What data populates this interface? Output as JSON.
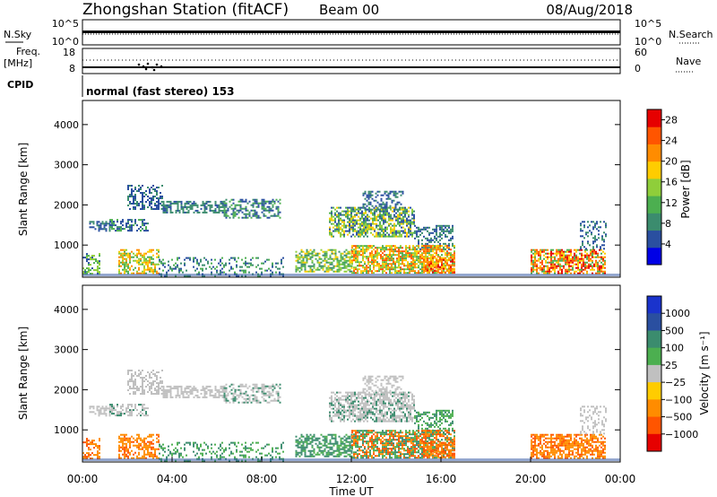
{
  "header": {
    "station": "Zhongshan Station (fitACF)",
    "beam": "Beam 00",
    "date": "08/Aug/2018"
  },
  "panels": {
    "nsky_label": "N.Sky",
    "nsky_ticks": [
      "10^5",
      "10^0"
    ],
    "nsearch_label": "N.Search",
    "nsearch_ticks": [
      "10^5",
      "10^0"
    ],
    "freq_label_1": "Freq.",
    "freq_label_2": "[MHz]",
    "freq_ticks": [
      "18",
      "8"
    ],
    "nave_label": "Nave",
    "nave_ticks": [
      "60",
      "0"
    ],
    "cpid_label": "CPID",
    "cpid_text": "normal (fast stereo) 153"
  },
  "colors": {
    "power": [
      "#0000e6",
      "#2a4fa0",
      "#3b8c6e",
      "#4caf50",
      "#8fce3a",
      "#ffcc00",
      "#ff8c00",
      "#ff5500",
      "#e60000"
    ],
    "velocity": [
      "#1a33cc",
      "#2a4fa0",
      "#3b8c6e",
      "#4caf50",
      "#c0c0c0",
      "#ffcc00",
      "#ff8c00",
      "#ff5500",
      "#e60000"
    ]
  },
  "chart_data": [
    {
      "type": "heatmap",
      "name": "power",
      "xlabel": "Time UT",
      "ylabel": "Slant Range [km]",
      "xlim": [
        0,
        24
      ],
      "ylim": [
        200,
        4600
      ],
      "yticks": [
        1000,
        2000,
        3000,
        4000
      ],
      "colorbar": {
        "label": "Power [dB]",
        "ticks": [
          4,
          8,
          12,
          16,
          20,
          24,
          28
        ],
        "range": [
          0,
          30
        ]
      },
      "grid": false
    },
    {
      "type": "heatmap",
      "name": "velocity",
      "xlabel": "Time UT",
      "ylabel": "Slant Range [km]",
      "xlim": [
        0,
        24
      ],
      "ylim": [
        200,
        4600
      ],
      "yticks": [
        1000,
        2000,
        3000,
        4000
      ],
      "xticks": [
        "00:00",
        "04:00",
        "08:00",
        "12:00",
        "16:00",
        "20:00",
        "00:00"
      ],
      "colorbar": {
        "label": "Velocity [m s⁻¹]",
        "ticks": [
          "1000",
          "500",
          "100",
          "25",
          "−25",
          "−100",
          "−500",
          "−1000"
        ]
      },
      "grid": false
    }
  ],
  "axes": {
    "ylabel": "Slant Range [km]",
    "xlabel": "Time UT",
    "power_cbar_label": "Power [dB]",
    "velocity_cbar_label": "Velocity [m s⁻¹]"
  }
}
